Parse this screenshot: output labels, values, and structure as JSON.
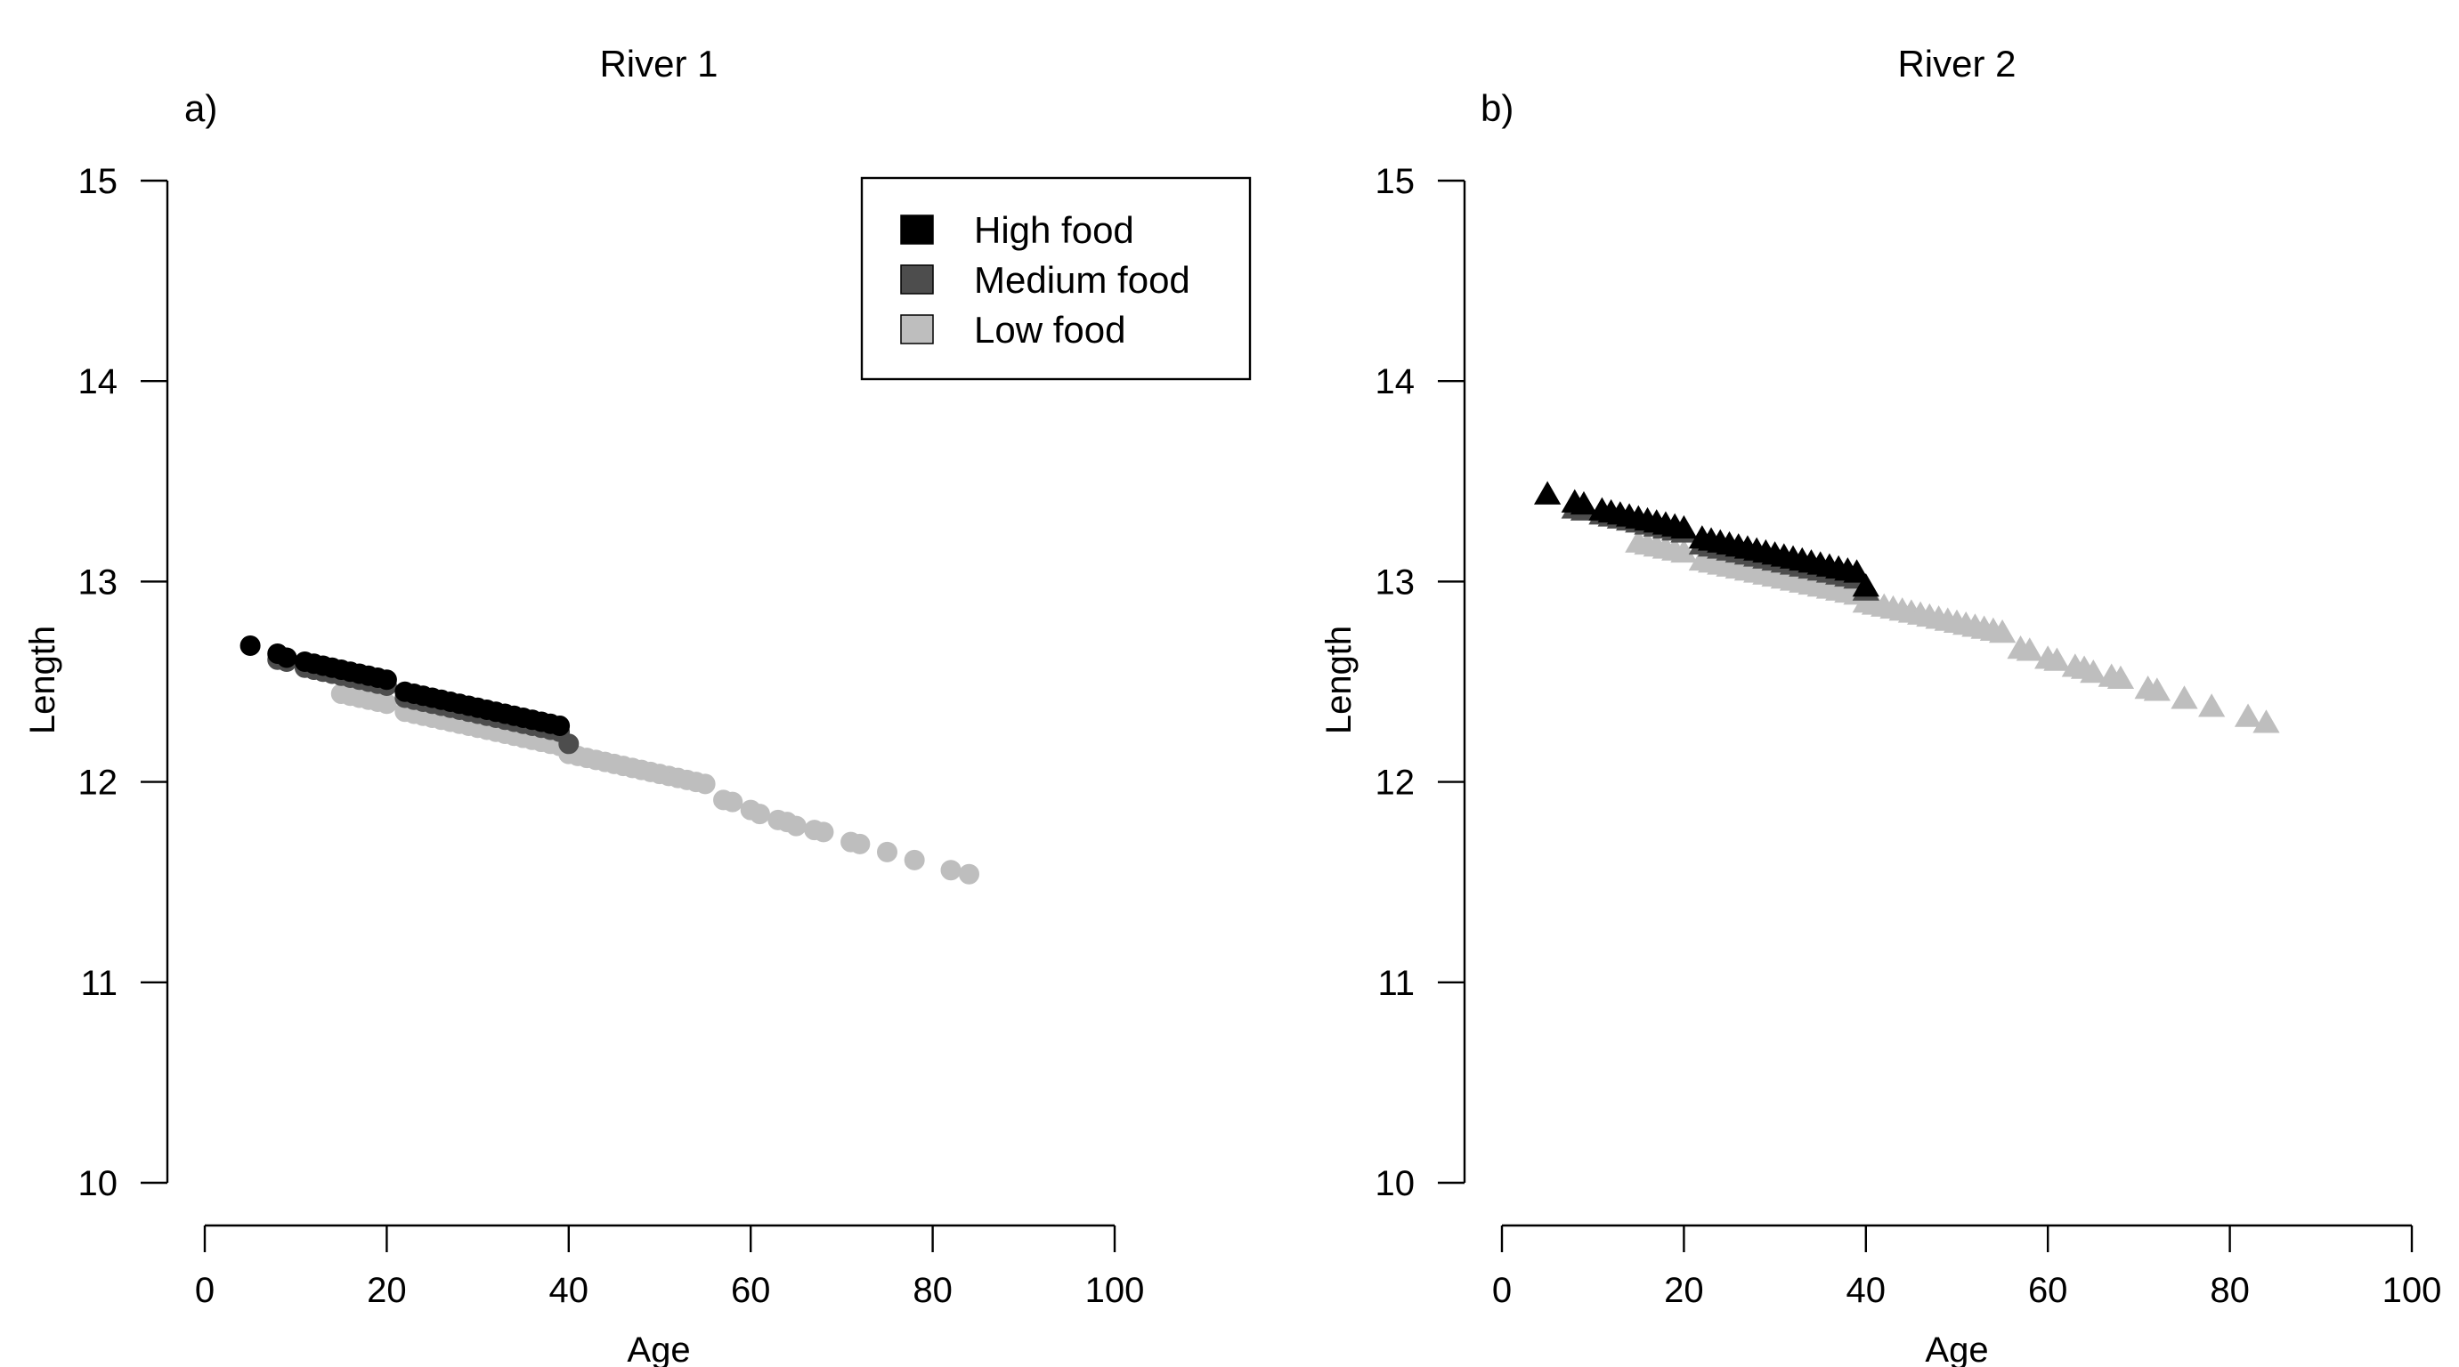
{
  "chart_data": [
    {
      "type": "scatter",
      "title": "River 1",
      "panel_label": "a)",
      "xlabel": "Age",
      "ylabel": "Length",
      "xlim": [
        0,
        100
      ],
      "ylim": [
        10,
        15
      ],
      "x_ticks": [
        0,
        20,
        40,
        60,
        80,
        100
      ],
      "y_ticks": [
        10,
        11,
        12,
        13,
        14,
        15
      ],
      "marker": "circle",
      "legend": {
        "position": "top-right",
        "entries": [
          "High food",
          "Medium food",
          "Low food"
        ]
      },
      "series": [
        {
          "name": "High food",
          "color": "#000000",
          "x": [
            5,
            8,
            9,
            11,
            12,
            13,
            14,
            15,
            16,
            17,
            18,
            19,
            20,
            22,
            23,
            24,
            25,
            26,
            27,
            28,
            29,
            30,
            31,
            32,
            33,
            34,
            35,
            36,
            37,
            38,
            39
          ],
          "y": [
            12.68,
            12.64,
            12.62,
            12.6,
            12.59,
            12.58,
            12.57,
            12.56,
            12.55,
            12.54,
            12.53,
            12.52,
            12.51,
            12.45,
            12.44,
            12.43,
            12.42,
            12.41,
            12.4,
            12.39,
            12.38,
            12.37,
            12.36,
            12.35,
            12.34,
            12.33,
            12.32,
            12.31,
            12.3,
            12.29,
            12.28
          ]
        },
        {
          "name": "Medium food",
          "color": "#4d4d4d",
          "x": [
            8,
            9,
            11,
            12,
            13,
            14,
            15,
            16,
            17,
            18,
            19,
            20,
            22,
            23,
            24,
            25,
            26,
            27,
            28,
            29,
            30,
            31,
            32,
            33,
            34,
            35,
            36,
            37,
            38,
            39,
            40
          ],
          "y": [
            12.61,
            12.6,
            12.57,
            12.56,
            12.55,
            12.54,
            12.53,
            12.52,
            12.51,
            12.5,
            12.49,
            12.48,
            12.42,
            12.41,
            12.4,
            12.39,
            12.38,
            12.37,
            12.36,
            12.35,
            12.34,
            12.33,
            12.32,
            12.31,
            12.3,
            12.29,
            12.28,
            12.27,
            12.26,
            12.25,
            12.19
          ]
        },
        {
          "name": "Low food",
          "color": "#bebebe",
          "x": [
            15,
            16,
            17,
            18,
            19,
            20,
            22,
            23,
            24,
            25,
            26,
            27,
            28,
            29,
            30,
            31,
            32,
            33,
            34,
            35,
            36,
            37,
            38,
            39,
            40,
            41,
            42,
            43,
            44,
            45,
            46,
            47,
            48,
            49,
            50,
            51,
            52,
            53,
            54,
            55,
            57,
            58,
            60,
            61,
            63,
            64,
            65,
            67,
            68,
            71,
            72,
            75,
            78,
            82,
            84
          ],
          "y": [
            12.44,
            12.43,
            12.42,
            12.41,
            12.4,
            12.39,
            12.35,
            12.34,
            12.33,
            12.32,
            12.31,
            12.3,
            12.29,
            12.28,
            12.27,
            12.26,
            12.25,
            12.24,
            12.23,
            12.22,
            12.21,
            12.2,
            12.19,
            12.18,
            12.14,
            12.13,
            12.12,
            12.11,
            12.1,
            12.09,
            12.08,
            12.07,
            12.06,
            12.05,
            12.04,
            12.03,
            12.02,
            12.01,
            12.0,
            11.99,
            11.91,
            11.9,
            11.86,
            11.84,
            11.81,
            11.8,
            11.78,
            11.76,
            11.75,
            11.7,
            11.69,
            11.65,
            11.61,
            11.56,
            11.54
          ]
        }
      ]
    },
    {
      "type": "scatter",
      "title": "River 2",
      "panel_label": "b)",
      "xlabel": "Age",
      "ylabel": "Length",
      "xlim": [
        0,
        100
      ],
      "ylim": [
        10,
        15
      ],
      "x_ticks": [
        0,
        20,
        40,
        60,
        80,
        100
      ],
      "y_ticks": [
        10,
        11,
        12,
        13,
        14,
        15
      ],
      "marker": "triangle",
      "series": [
        {
          "name": "High food",
          "color": "#000000",
          "x": [
            5,
            8,
            9,
            11,
            12,
            13,
            14,
            15,
            16,
            17,
            18,
            19,
            20,
            22,
            23,
            24,
            25,
            26,
            27,
            28,
            29,
            30,
            31,
            32,
            33,
            34,
            35,
            36,
            37,
            38,
            39,
            40
          ],
          "y": [
            13.43,
            13.39,
            13.38,
            13.35,
            13.34,
            13.33,
            13.32,
            13.31,
            13.3,
            13.29,
            13.28,
            13.27,
            13.26,
            13.21,
            13.2,
            13.19,
            13.18,
            13.17,
            13.16,
            13.15,
            13.14,
            13.13,
            13.12,
            13.11,
            13.1,
            13.09,
            13.08,
            13.07,
            13.06,
            13.05,
            13.04,
            12.97
          ]
        },
        {
          "name": "Medium food",
          "color": "#4d4d4d",
          "x": [
            8,
            9,
            11,
            12,
            13,
            14,
            15,
            16,
            17,
            18,
            19,
            20,
            22,
            23,
            24,
            25,
            26,
            27,
            28,
            29,
            30,
            31,
            32,
            33,
            34,
            35,
            36,
            37,
            38,
            39,
            40
          ],
          "y": [
            13.36,
            13.35,
            13.33,
            13.32,
            13.31,
            13.3,
            13.29,
            13.28,
            13.27,
            13.26,
            13.25,
            13.24,
            13.18,
            13.17,
            13.16,
            13.15,
            13.14,
            13.13,
            13.12,
            13.11,
            13.1,
            13.09,
            13.08,
            13.07,
            13.06,
            13.05,
            13.04,
            13.03,
            13.02,
            13.01,
            12.95
          ]
        },
        {
          "name": "Low food",
          "color": "#bebebe",
          "x": [
            15,
            16,
            17,
            18,
            19,
            20,
            22,
            23,
            24,
            25,
            26,
            27,
            28,
            29,
            30,
            31,
            32,
            33,
            34,
            35,
            36,
            37,
            38,
            39,
            40,
            41,
            42,
            43,
            44,
            45,
            46,
            47,
            48,
            49,
            50,
            51,
            52,
            53,
            54,
            55,
            57,
            58,
            60,
            61,
            63,
            64,
            65,
            67,
            68,
            71,
            72,
            75,
            78,
            82,
            84
          ],
          "y": [
            13.19,
            13.18,
            13.17,
            13.16,
            13.15,
            13.14,
            13.1,
            13.09,
            13.08,
            13.07,
            13.06,
            13.05,
            13.04,
            13.03,
            13.02,
            13.01,
            13.0,
            12.99,
            12.98,
            12.97,
            12.96,
            12.95,
            12.94,
            12.93,
            12.89,
            12.88,
            12.87,
            12.86,
            12.85,
            12.84,
            12.83,
            12.82,
            12.81,
            12.8,
            12.79,
            12.78,
            12.77,
            12.76,
            12.75,
            12.74,
            12.66,
            12.65,
            12.61,
            12.6,
            12.57,
            12.56,
            12.54,
            12.52,
            12.51,
            12.46,
            12.45,
            12.41,
            12.37,
            12.32,
            12.29
          ]
        }
      ]
    }
  ]
}
